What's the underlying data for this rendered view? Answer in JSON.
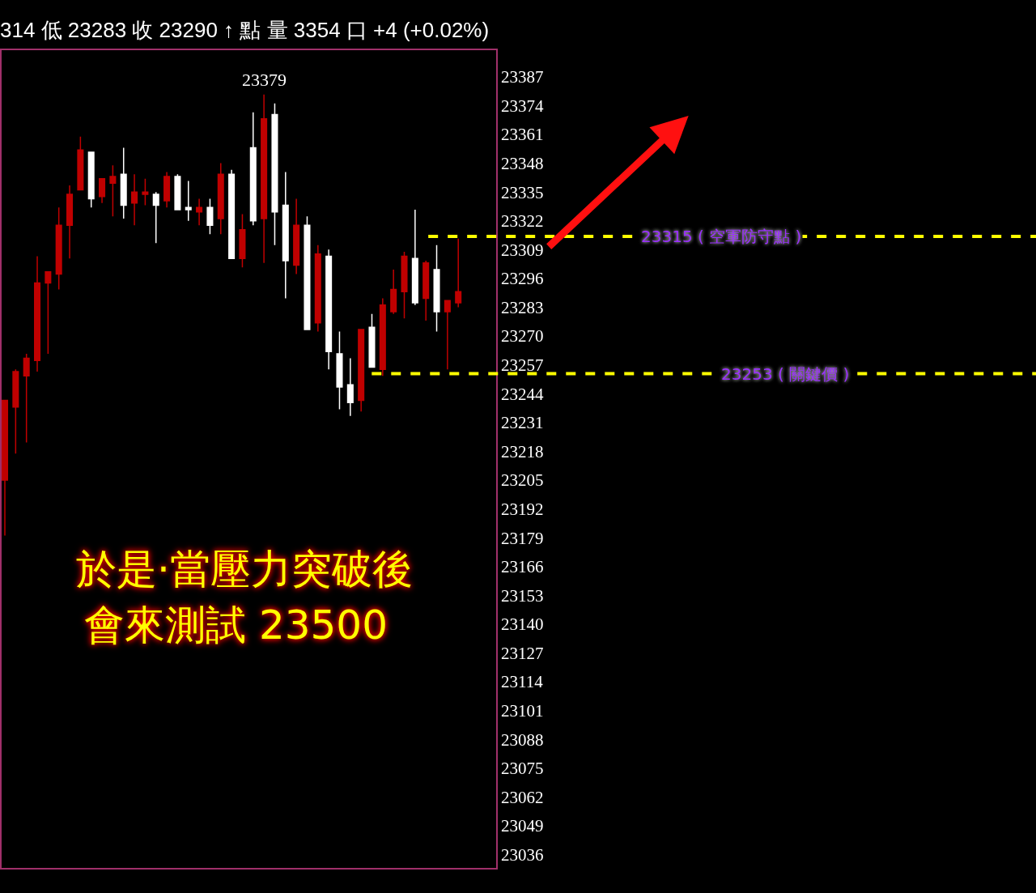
{
  "chart_data": {
    "type": "candlestick",
    "title": "314 低 23283 收 23290 ↑ 點 量 3354 口 +4 (+0.02%)",
    "categories": [
      null,
      null,
      null,
      null,
      null,
      null,
      null,
      null,
      null,
      null,
      null,
      null,
      null,
      null,
      null,
      null,
      null,
      null,
      null,
      null,
      null,
      null,
      null,
      null,
      null,
      null,
      null,
      null,
      null,
      null,
      null,
      null,
      null,
      null,
      null,
      null,
      null,
      null,
      null,
      null,
      null,
      null,
      null
    ],
    "ohlc": [
      [
        23205,
        23241,
        23180,
        23241
      ],
      [
        23238,
        23255,
        23217,
        23254
      ],
      [
        23252,
        23262,
        23222,
        23260
      ],
      [
        23259,
        23306,
        23254,
        23294
      ],
      [
        23294,
        23299,
        23262,
        23299
      ],
      [
        23298,
        23328,
        23291,
        23320
      ],
      [
        23320,
        23338,
        23305,
        23334
      ],
      [
        23336,
        23360,
        23336,
        23354
      ],
      [
        23353,
        23353,
        23328,
        23332
      ],
      [
        23333,
        23341,
        23330,
        23341
      ],
      [
        23339,
        23347,
        23324,
        23342
      ],
      [
        23343,
        23355,
        23323,
        23329
      ],
      [
        23330,
        23343,
        23320,
        23335
      ],
      [
        23334,
        23341,
        23329,
        23335
      ],
      [
        23334,
        23335,
        23312,
        23329
      ],
      [
        23331,
        23344,
        23328,
        23342
      ],
      [
        23342,
        23343,
        23327,
        23327
      ],
      [
        23328,
        23340,
        23322,
        23327
      ],
      [
        23326,
        23332,
        23320,
        23328
      ],
      [
        23328,
        23332,
        23316,
        23320
      ],
      [
        23323,
        23348,
        23316,
        23343
      ],
      [
        23343,
        23345,
        23305,
        23305
      ],
      [
        23305,
        23325,
        23301,
        23318
      ],
      [
        23355,
        23371,
        23320,
        23322
      ],
      [
        23323,
        23379,
        23303,
        23368
      ],
      [
        23370,
        23375,
        23311,
        23326
      ],
      [
        23329,
        23344,
        23287,
        23304
      ],
      [
        23302,
        23332,
        23298,
        23320
      ],
      [
        23320,
        23324,
        23273,
        23273
      ],
      [
        23276,
        23311,
        23272,
        23307
      ],
      [
        23306,
        23309,
        23255,
        23263
      ],
      [
        23262,
        23272,
        23237,
        23247
      ],
      [
        23248,
        23260,
        23234,
        23240
      ],
      [
        23241,
        23273,
        23236,
        23273
      ],
      [
        23274,
        23280,
        23256,
        23256
      ],
      [
        23255,
        23287,
        23252,
        23284
      ],
      [
        23281,
        23300,
        23280,
        23291
      ],
      [
        23290,
        23308,
        23278,
        23306
      ],
      [
        23305,
        23327,
        23284,
        23285
      ],
      [
        23287,
        23304,
        23277,
        23303
      ],
      [
        23300,
        23311,
        23272,
        23281
      ],
      [
        23281,
        23286,
        23255,
        23286
      ],
      [
        23285,
        23314,
        23283,
        23290
      ]
    ],
    "colors": [
      "#c00000",
      "#c00000",
      "#c00000",
      "#c00000",
      "#c00000",
      "#c00000",
      "#c00000",
      "#c00000",
      "#ffffff",
      "#c00000",
      "#c00000",
      "#ffffff",
      "#c00000",
      "#c00000",
      "#ffffff",
      "#c00000",
      "#ffffff",
      "#ffffff",
      "#c00000",
      "#ffffff",
      "#c00000",
      "#ffffff",
      "#c00000",
      "#ffffff",
      "#c00000",
      "#ffffff",
      "#ffffff",
      "#c00000",
      "#ffffff",
      "#c00000",
      "#ffffff",
      "#ffffff",
      "#ffffff",
      "#c00000",
      "#ffffff",
      "#c00000",
      "#c00000",
      "#c00000",
      "#ffffff",
      "#c00000",
      "#ffffff",
      "#c00000",
      "#c00000"
    ],
    "ylim": [
      23030,
      23399
    ],
    "yticks": [
      23036,
      23049,
      23062,
      23075,
      23088,
      23101,
      23114,
      23127,
      23140,
      23153,
      23166,
      23179,
      23192,
      23205,
      23218,
      23231,
      23244,
      23257,
      23270,
      23283,
      23296,
      23309,
      23322,
      23335,
      23348,
      23361,
      23374,
      23387
    ],
    "tick_labels": "y",
    "grid": false,
    "legend": false,
    "ref_lines": [
      {
        "axis": "y",
        "value": 23315,
        "label": "23315 ( 空軍防守點 )",
        "color": "#ffff00",
        "line_style": "dashed"
      },
      {
        "axis": "y",
        "value": 23253,
        "label": "23253 ( 關鍵價 )",
        "color": "#ffff00",
        "line_style": "dashed"
      }
    ],
    "annotations": [
      {
        "text": "23379",
        "y": 23379
      },
      "於是·當壓力突破後",
      "會來測試 23500"
    ]
  }
}
